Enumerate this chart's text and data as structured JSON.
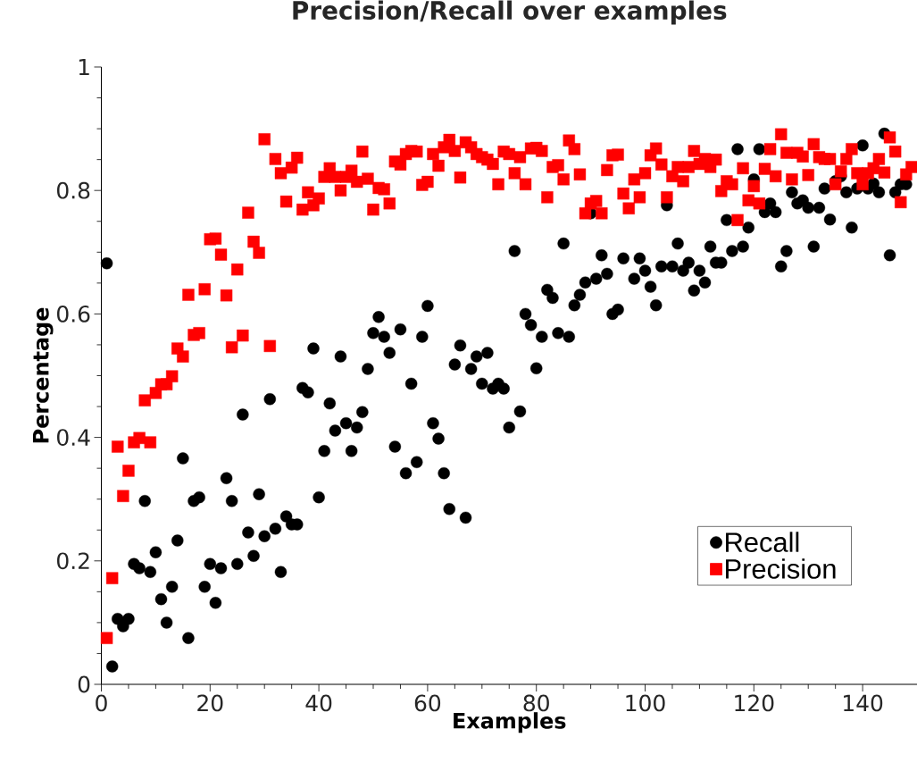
{
  "chart_data": {
    "type": "scatter",
    "title": "Precision/Recall over examples",
    "xlabel": "Examples",
    "ylabel": "Percentage",
    "xlim": [
      0,
      150
    ],
    "ylim": [
      0,
      1
    ],
    "xticks": [
      0,
      20,
      40,
      60,
      80,
      100,
      120,
      140
    ],
    "yticks": [
      0,
      0.2,
      0.4,
      0.6,
      0.8,
      1
    ],
    "legend": "bottom right",
    "series": [
      {
        "name": "Recall",
        "color": "#000000",
        "marker": "circle",
        "x": [
          1,
          2,
          3,
          4,
          5,
          6,
          7,
          8,
          9,
          10,
          11,
          12,
          13,
          14,
          15,
          16,
          17,
          18,
          19,
          20,
          21,
          22,
          23,
          24,
          25,
          26,
          27,
          28,
          29,
          30,
          31,
          32,
          33,
          34,
          35,
          36,
          37,
          38,
          39,
          40,
          41,
          42,
          43,
          44,
          45,
          46,
          47,
          48,
          49,
          50,
          51,
          52,
          53,
          54,
          55,
          56,
          57,
          58,
          59,
          60,
          61,
          62,
          63,
          64,
          65,
          66,
          67,
          68,
          69,
          70,
          71,
          72,
          73,
          74,
          75,
          76,
          77,
          78,
          79,
          80,
          81,
          82,
          83,
          84,
          85,
          86,
          87,
          88,
          89,
          90,
          91,
          92,
          93,
          94,
          95,
          96,
          98,
          99,
          100,
          101,
          102,
          103,
          104,
          105,
          106,
          107,
          108,
          109,
          110,
          111,
          112,
          113,
          114,
          115,
          116,
          117,
          118,
          119,
          120,
          121,
          122,
          123,
          124,
          125,
          126,
          127,
          128,
          129,
          130,
          131,
          132,
          133,
          134,
          135,
          136,
          137,
          138,
          139,
          140,
          141,
          142,
          143,
          144,
          145,
          146,
          147,
          148
        ],
        "values": [
          0.682,
          0.029,
          0.106,
          0.094,
          0.106,
          0.195,
          0.188,
          0.297,
          0.182,
          0.214,
          0.138,
          0.1,
          0.158,
          0.233,
          0.366,
          0.075,
          0.297,
          0.303,
          0.158,
          0.195,
          0.132,
          0.188,
          0.334,
          0.297,
          0.195,
          0.437,
          0.246,
          0.208,
          0.308,
          0.24,
          0.462,
          0.252,
          0.182,
          0.272,
          0.259,
          0.259,
          0.48,
          0.473,
          0.544,
          0.303,
          0.378,
          0.455,
          0.411,
          0.531,
          0.423,
          0.378,
          0.416,
          0.441,
          0.511,
          0.569,
          0.595,
          0.563,
          0.537,
          0.385,
          0.575,
          0.342,
          0.487,
          0.36,
          0.563,
          0.613,
          0.423,
          0.398,
          0.342,
          0.284,
          0.518,
          0.549,
          0.27,
          0.511,
          0.531,
          0.487,
          0.537,
          0.479,
          0.487,
          0.479,
          0.416,
          0.702,
          0.442,
          0.6,
          0.582,
          0.512,
          0.563,
          0.639,
          0.626,
          0.569,
          0.714,
          0.563,
          0.614,
          0.631,
          0.651,
          0.763,
          0.657,
          0.695,
          0.665,
          0.6,
          0.607,
          0.69,
          0.657,
          0.69,
          0.67,
          0.644,
          0.614,
          0.677,
          0.776,
          0.677,
          0.714,
          0.67,
          0.683,
          0.638,
          0.67,
          0.651,
          0.709,
          0.683,
          0.683,
          0.752,
          0.702,
          0.867,
          0.709,
          0.74,
          0.818,
          0.867,
          0.765,
          0.779,
          0.765,
          0.677,
          0.702,
          0.797,
          0.779,
          0.784,
          0.772,
          0.709,
          0.772,
          0.803,
          0.753,
          0.815,
          0.823,
          0.797,
          0.74,
          0.803,
          0.873,
          0.803,
          0.811,
          0.797,
          0.892,
          0.695,
          0.797,
          0.81,
          0.81
        ]
      },
      {
        "name": "Precision",
        "color": "#ff0000",
        "marker": "square",
        "x": [
          1,
          2,
          3,
          4,
          5,
          6,
          7,
          8,
          9,
          10,
          11,
          12,
          13,
          14,
          15,
          16,
          17,
          18,
          19,
          20,
          21,
          22,
          23,
          24,
          25,
          26,
          27,
          28,
          29,
          30,
          31,
          32,
          33,
          34,
          35,
          36,
          37,
          38,
          39,
          40,
          41,
          42,
          43,
          44,
          45,
          46,
          47,
          48,
          49,
          50,
          51,
          52,
          53,
          54,
          55,
          56,
          57,
          58,
          59,
          60,
          61,
          62,
          63,
          64,
          65,
          66,
          67,
          68,
          69,
          70,
          71,
          72,
          73,
          74,
          75,
          76,
          77,
          78,
          79,
          80,
          81,
          82,
          83,
          84,
          85,
          86,
          87,
          88,
          89,
          90,
          91,
          92,
          93,
          94,
          95,
          96,
          97,
          98,
          99,
          100,
          101,
          102,
          103,
          104,
          105,
          106,
          107,
          108,
          109,
          110,
          111,
          112,
          113,
          114,
          115,
          116,
          117,
          118,
          119,
          120,
          121,
          122,
          123,
          124,
          125,
          126,
          127,
          128,
          129,
          130,
          131,
          132,
          133,
          134,
          135,
          136,
          137,
          138,
          139,
          140,
          141,
          142,
          143,
          144,
          145,
          146,
          147,
          148,
          149
        ],
        "values": [
          0.075,
          0.172,
          0.385,
          0.305,
          0.346,
          0.392,
          0.399,
          0.46,
          0.392,
          0.472,
          0.486,
          0.486,
          0.499,
          0.544,
          0.531,
          0.631,
          0.566,
          0.569,
          0.64,
          0.721,
          0.722,
          0.696,
          0.63,
          0.546,
          0.672,
          0.565,
          0.764,
          0.717,
          0.699,
          0.883,
          0.548,
          0.851,
          0.828,
          0.782,
          0.837,
          0.853,
          0.769,
          0.797,
          0.776,
          0.787,
          0.822,
          0.836,
          0.822,
          0.8,
          0.822,
          0.832,
          0.814,
          0.863,
          0.819,
          0.769,
          0.804,
          0.802,
          0.779,
          0.847,
          0.842,
          0.859,
          0.864,
          0.863,
          0.809,
          0.814,
          0.859,
          0.84,
          0.87,
          0.882,
          0.864,
          0.821,
          0.878,
          0.87,
          0.859,
          0.854,
          0.85,
          0.843,
          0.81,
          0.863,
          0.859,
          0.828,
          0.854,
          0.81,
          0.868,
          0.869,
          0.864,
          0.789,
          0.838,
          0.841,
          0.818,
          0.881,
          0.867,
          0.826,
          0.763,
          0.779,
          0.783,
          0.763,
          0.833,
          0.857,
          0.858,
          0.795,
          0.771,
          0.818,
          0.789,
          0.828,
          0.857,
          0.868,
          0.842,
          0.789,
          0.823,
          0.838,
          0.815,
          0.838,
          0.864,
          0.843,
          0.851,
          0.838,
          0.85,
          0.799,
          0.815,
          0.81,
          0.752,
          0.836,
          0.784,
          0.807,
          0.779,
          0.835,
          0.867,
          0.823,
          0.891,
          0.861,
          0.818,
          0.861,
          0.855,
          0.825,
          0.875,
          0.854,
          0.851,
          0.851,
          0.81,
          0.831,
          0.851,
          0.867,
          0.828,
          0.81,
          0.828,
          0.836,
          0.851,
          0.829,
          0.886,
          0.863,
          0.781,
          0.826,
          0.838
        ]
      }
    ]
  }
}
